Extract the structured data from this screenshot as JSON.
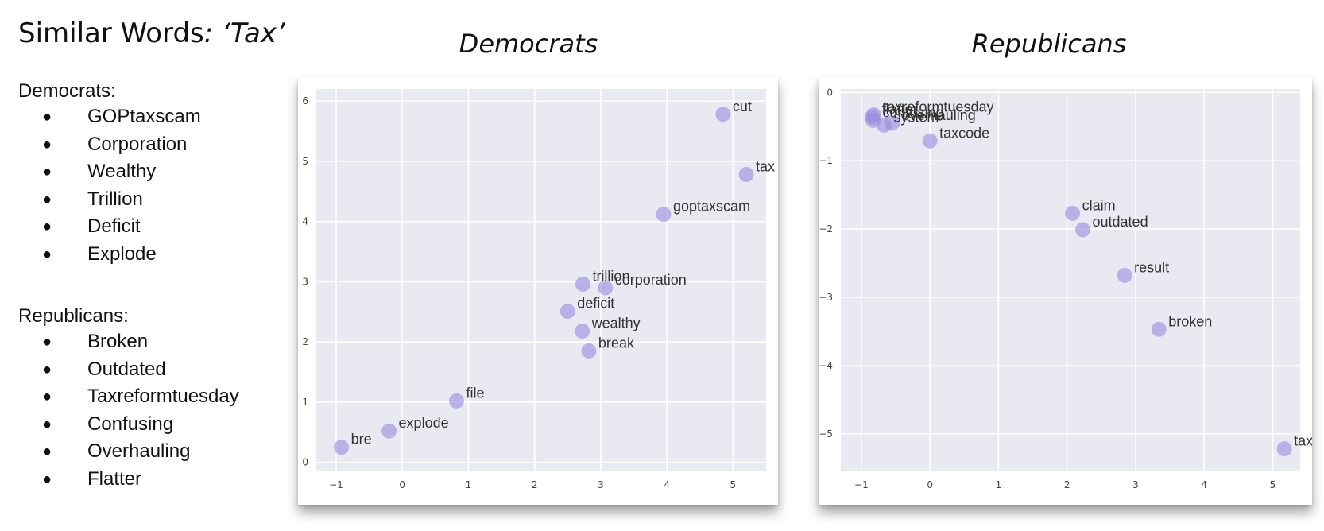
{
  "heading": {
    "prefix": "Similar Words",
    "query": ": ‘Tax’"
  },
  "lists": {
    "democrats": {
      "label": "Democrats:",
      "items": [
        "GOPtaxscam",
        "Corporation",
        "Wealthy",
        "Trillion",
        "Deficit",
        "Explode"
      ]
    },
    "republicans": {
      "label": "Republicans:",
      "items": [
        "Broken",
        "Outdated",
        "Taxreformtuesday",
        "Confusing",
        "Overhauling",
        "Flatter"
      ]
    }
  },
  "chart_data": [
    {
      "type": "scatter",
      "title": "Democrats",
      "xlabel": "",
      "ylabel": "",
      "xlim": [
        -1.3,
        5.5
      ],
      "ylim": [
        -0.15,
        6.2
      ],
      "xticks": [
        -1,
        0,
        1,
        2,
        3,
        4,
        5
      ],
      "yticks": [
        0,
        1,
        2,
        3,
        4,
        5,
        6
      ],
      "grid": true,
      "marker_color": "#9b8ce0",
      "points": [
        {
          "label": "cut",
          "x": 4.85,
          "y": 5.78
        },
        {
          "label": "tax",
          "x": 5.2,
          "y": 4.78
        },
        {
          "label": "goptaxscam",
          "x": 3.95,
          "y": 4.12
        },
        {
          "label": "trillion",
          "x": 2.73,
          "y": 2.96
        },
        {
          "label": "corporation",
          "x": 3.07,
          "y": 2.9
        },
        {
          "label": "deficit",
          "x": 2.5,
          "y": 2.51
        },
        {
          "label": "wealthy",
          "x": 2.72,
          "y": 2.18
        },
        {
          "label": "break",
          "x": 2.82,
          "y": 1.85
        },
        {
          "label": "file",
          "x": 0.82,
          "y": 1.02
        },
        {
          "label": "explode",
          "x": -0.2,
          "y": 0.52
        },
        {
          "label": "bre",
          "x": -0.92,
          "y": 0.25
        }
      ]
    },
    {
      "type": "scatter",
      "title": "Republicans",
      "xlabel": "",
      "ylabel": "",
      "xlim": [
        -1.3,
        5.4
      ],
      "ylim": [
        -5.55,
        0.05
      ],
      "xticks": [
        -1,
        0,
        1,
        2,
        3,
        4,
        5
      ],
      "yticks": [
        0,
        -1,
        -2,
        -3,
        -4,
        -5
      ],
      "grid": true,
      "marker_color": "#9b8ce0",
      "points": [
        {
          "label": "taxreformtuesday",
          "x": -0.82,
          "y": -0.33
        },
        {
          "label": "flatter",
          "x": -0.84,
          "y": -0.36
        },
        {
          "label": "confusing",
          "x": -0.83,
          "y": -0.41
        },
        {
          "label": "overhauling",
          "x": -0.55,
          "y": -0.45
        },
        {
          "label": "system",
          "x": -0.67,
          "y": -0.48
        },
        {
          "label": "taxcode",
          "x": 0.0,
          "y": -0.71
        },
        {
          "label": "claim",
          "x": 2.08,
          "y": -1.77
        },
        {
          "label": "outdated",
          "x": 2.23,
          "y": -2.01
        },
        {
          "label": "result",
          "x": 2.84,
          "y": -2.68
        },
        {
          "label": "broken",
          "x": 3.34,
          "y": -3.47
        },
        {
          "label": "tax",
          "x": 5.17,
          "y": -5.22
        }
      ]
    }
  ]
}
